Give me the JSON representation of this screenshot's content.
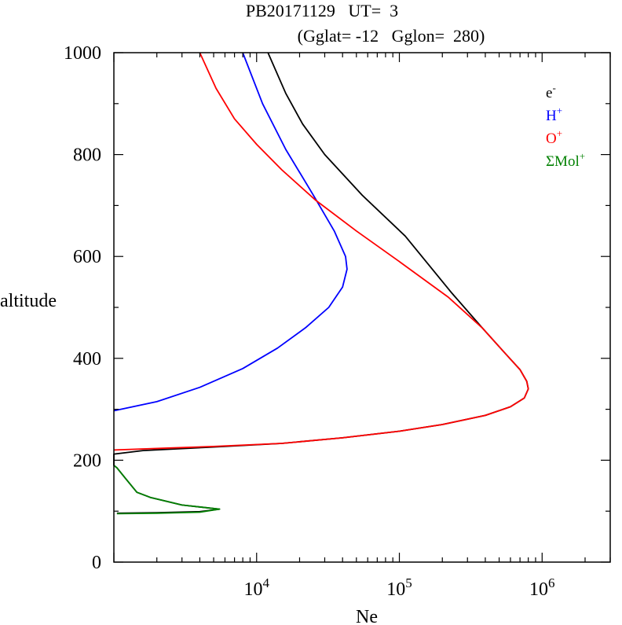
{
  "chart_data": {
    "type": "line",
    "title": "PB20171129   UT=  3",
    "subtitle": "(Gglat= -12   Gglon=  280)",
    "xlabel": "Ne",
    "ylabel": "altitude",
    "x_scale": "log",
    "xlim": [
      1000,
      3000000
    ],
    "ylim": [
      0,
      1000
    ],
    "x_ticks": [
      {
        "value": 10000,
        "base": "10",
        "exp": "4"
      },
      {
        "value": 100000,
        "base": "10",
        "exp": "5"
      },
      {
        "value": 1000000,
        "base": "10",
        "exp": "6"
      }
    ],
    "y_ticks": [
      {
        "value": 0,
        "label": "0"
      },
      {
        "value": 200,
        "label": "200"
      },
      {
        "value": 400,
        "label": "400"
      },
      {
        "value": 600,
        "label": "600"
      },
      {
        "value": 800,
        "label": "800"
      },
      {
        "value": 1000,
        "label": "1000"
      }
    ],
    "grid": false,
    "legend_position": "top-right",
    "series": [
      {
        "name": "e-",
        "label_base": "e",
        "label_sup": "-",
        "color": "#000000",
        "points": [
          [
            1050,
            96
          ],
          [
            2000,
            97
          ],
          [
            4000,
            99
          ],
          [
            5500,
            104
          ],
          [
            3000,
            112
          ],
          [
            1800,
            127
          ],
          [
            1450,
            137
          ],
          [
            1200,
            165
          ],
          [
            1050,
            185
          ],
          [
            1000,
            190
          ],
          [
            1000,
            212
          ],
          [
            1600,
            219
          ],
          [
            5000,
            226
          ],
          [
            15000,
            233
          ],
          [
            40000,
            244
          ],
          [
            100000,
            257
          ],
          [
            200000,
            270
          ],
          [
            400000,
            288
          ],
          [
            600000,
            305
          ],
          [
            750000,
            322
          ],
          [
            800000,
            340
          ],
          [
            780000,
            355
          ],
          [
            700000,
            378
          ],
          [
            550000,
            410
          ],
          [
            380000,
            460
          ],
          [
            230000,
            530
          ],
          [
            110000,
            640
          ],
          [
            55000,
            720
          ],
          [
            30000,
            800
          ],
          [
            21000,
            860
          ],
          [
            16000,
            920
          ],
          [
            12000,
            1000
          ]
        ]
      },
      {
        "name": "H+",
        "label_base": "H",
        "label_sup": "+",
        "color": "#0000ff",
        "points": [
          [
            1000,
            297
          ],
          [
            2000,
            315
          ],
          [
            4000,
            343
          ],
          [
            8000,
            380
          ],
          [
            14000,
            420
          ],
          [
            22000,
            460
          ],
          [
            32000,
            500
          ],
          [
            40000,
            540
          ],
          [
            43000,
            575
          ],
          [
            42000,
            600
          ],
          [
            35000,
            650
          ],
          [
            25000,
            720
          ],
          [
            16000,
            810
          ],
          [
            11000,
            900
          ],
          [
            8000,
            1000
          ]
        ]
      },
      {
        "name": "O+",
        "label_base": "O",
        "label_sup": "+",
        "color": "#ff0000",
        "points": [
          [
            1000,
            220
          ],
          [
            2500,
            224
          ],
          [
            5000,
            227
          ],
          [
            15000,
            233
          ],
          [
            40000,
            244
          ],
          [
            100000,
            257
          ],
          [
            200000,
            270
          ],
          [
            400000,
            288
          ],
          [
            600000,
            305
          ],
          [
            750000,
            322
          ],
          [
            800000,
            340
          ],
          [
            780000,
            355
          ],
          [
            700000,
            378
          ],
          [
            550000,
            410
          ],
          [
            380000,
            460
          ],
          [
            220000,
            520
          ],
          [
            100000,
            590
          ],
          [
            50000,
            650
          ],
          [
            26000,
            710
          ],
          [
            15000,
            770
          ],
          [
            10000,
            820
          ],
          [
            7000,
            870
          ],
          [
            5200,
            930
          ],
          [
            4000,
            1000
          ]
        ]
      },
      {
        "name": "ΣMol+",
        "label_base": "ΣMol",
        "label_sup": "+",
        "color": "#008000",
        "points": [
          [
            1050,
            95
          ],
          [
            2000,
            96
          ],
          [
            4000,
            98
          ],
          [
            5500,
            104
          ],
          [
            3000,
            112
          ],
          [
            1800,
            127
          ],
          [
            1450,
            137
          ],
          [
            1200,
            165
          ],
          [
            1050,
            185
          ],
          [
            1000,
            190
          ]
        ]
      }
    ]
  }
}
